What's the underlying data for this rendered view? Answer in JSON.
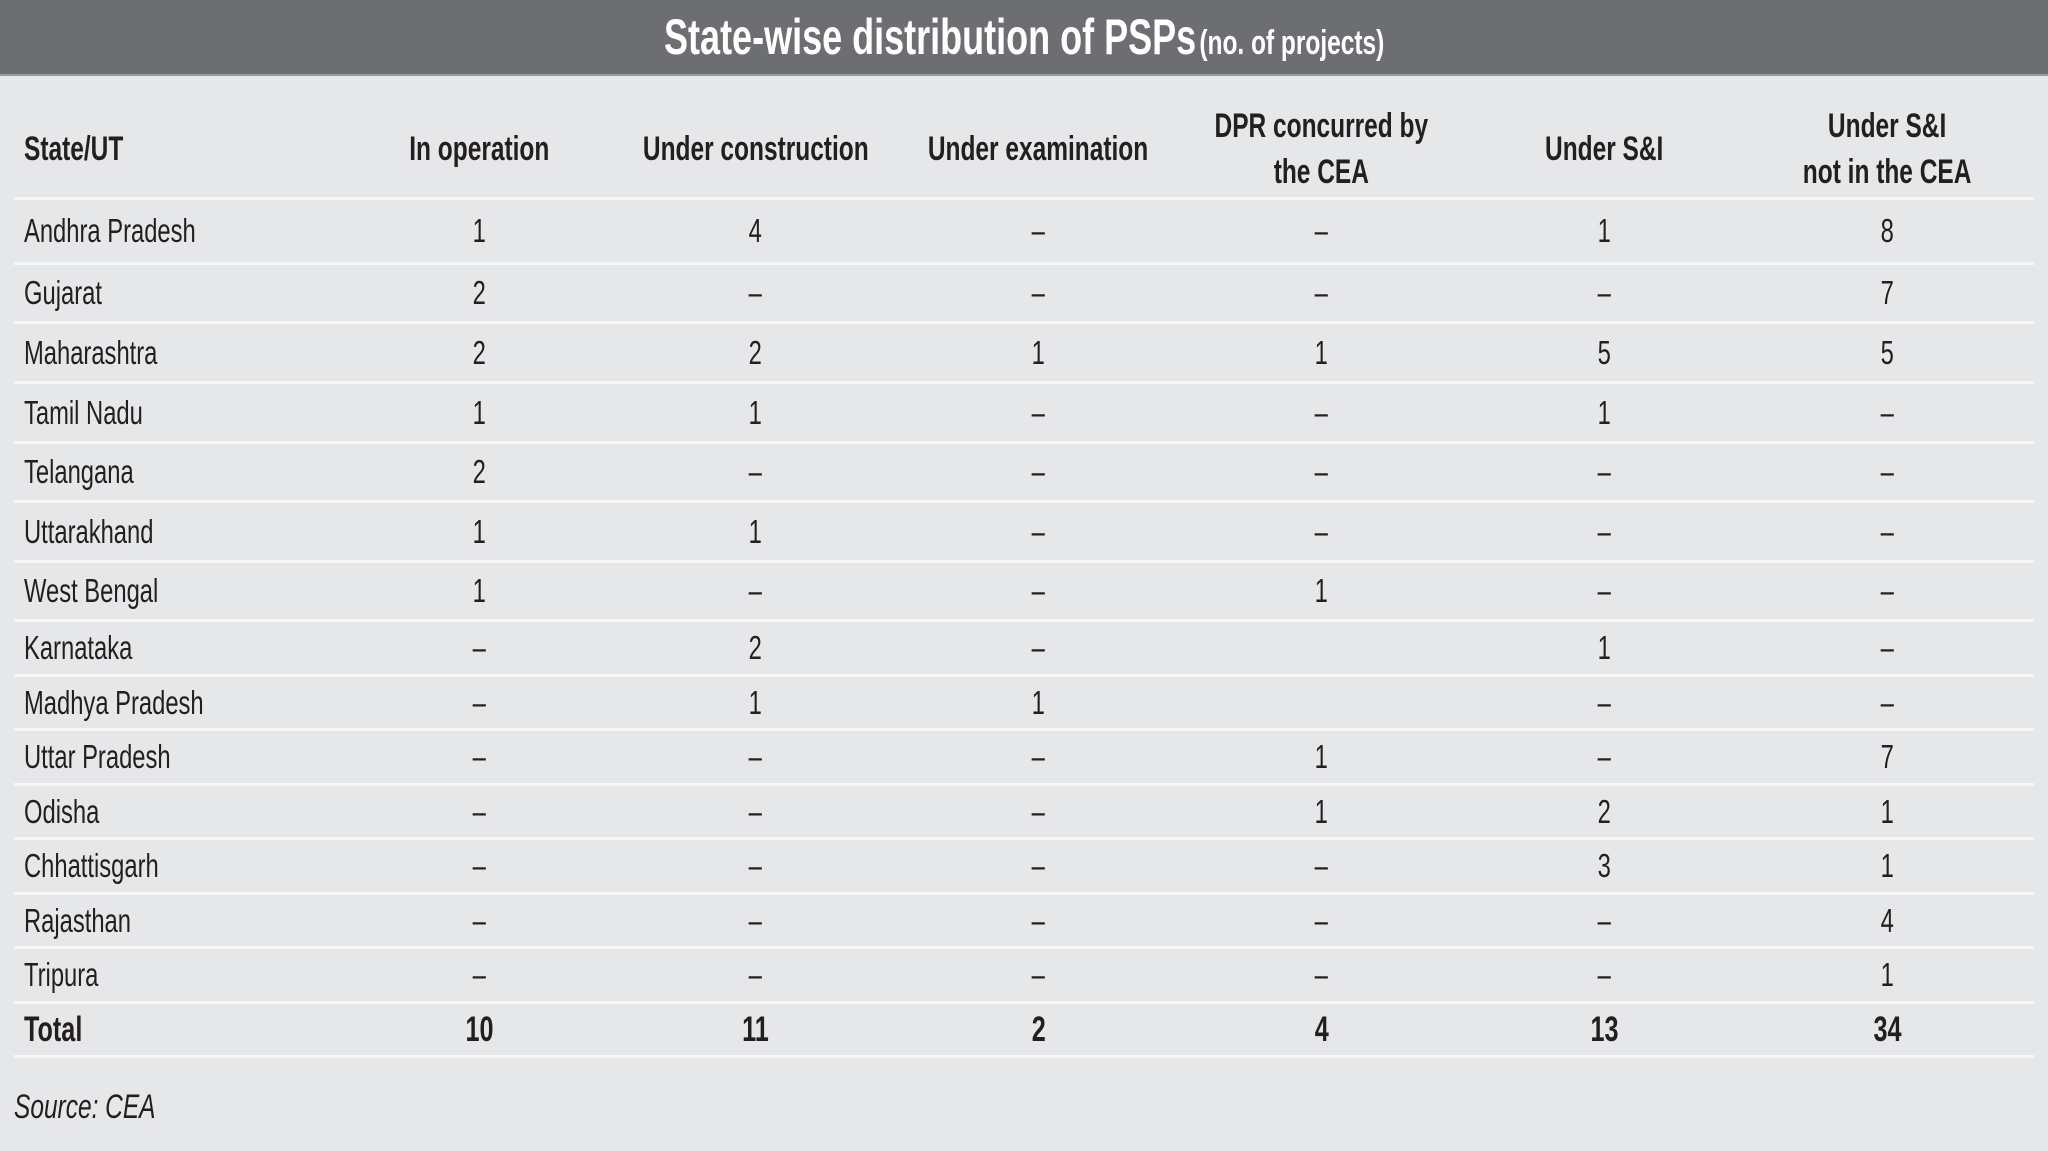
{
  "title": {
    "main": "State-wise distribution of PSPs",
    "sub": "(no. of projects)"
  },
  "colors": {
    "title_bar": "#6d6e71",
    "background": "#e6e7e8",
    "row_divider": "#f7f7f7",
    "text": "#231f20"
  },
  "table": {
    "headers": [
      "State/UT",
      "In operation",
      "Under construction",
      "Under examination",
      "DPR concurred by the CEA",
      "Under S&I",
      "Under S&I not in the CEA"
    ],
    "header_lines": {
      "dpr_line1": "DPR concurred by",
      "dpr_line2": "the CEA",
      "si_not_line1": "Under S&I",
      "si_not_line2": "not in the CEA"
    },
    "rows": [
      {
        "state": "Andhra Pradesh",
        "cells": [
          "1",
          "4",
          "–",
          "–",
          "1",
          "8"
        ]
      },
      {
        "state": "Gujarat",
        "cells": [
          "2",
          "–",
          "–",
          "–",
          "–",
          "7"
        ]
      },
      {
        "state": "Maharashtra",
        "cells": [
          "2",
          "2",
          "1",
          "1",
          "5",
          "5"
        ]
      },
      {
        "state": "Tamil Nadu",
        "cells": [
          "1",
          "1",
          "–",
          "–",
          "1",
          "–"
        ]
      },
      {
        "state": "Telangana",
        "cells": [
          "2",
          "–",
          "–",
          "–",
          "–",
          "–"
        ]
      },
      {
        "state": "Uttarakhand",
        "cells": [
          "1",
          "1",
          "–",
          "–",
          "–",
          "–"
        ]
      },
      {
        "state": "West Bengal",
        "cells": [
          "1",
          "–",
          "–",
          "1",
          "–",
          "–"
        ]
      },
      {
        "state": "Karnataka",
        "cells": [
          "–",
          "2",
          "–",
          "",
          "1",
          "–"
        ]
      },
      {
        "state": "Madhya Pradesh",
        "cells": [
          "–",
          "1",
          "1",
          "",
          "–",
          "–"
        ]
      },
      {
        "state": "Uttar Pradesh",
        "cells": [
          "–",
          "–",
          "–",
          "1",
          "–",
          "7"
        ]
      },
      {
        "state": "Odisha",
        "cells": [
          "–",
          "–",
          "–",
          "1",
          "2",
          "1"
        ]
      },
      {
        "state": "Chhattisgarh",
        "cells": [
          "–",
          "–",
          "–",
          "–",
          "3",
          "1"
        ]
      },
      {
        "state": "Rajasthan",
        "cells": [
          "–",
          "–",
          "–",
          "–",
          "–",
          "4"
        ]
      },
      {
        "state": "Tripura",
        "cells": [
          "–",
          "–",
          "–",
          "–",
          "–",
          "1"
        ]
      }
    ],
    "total": {
      "label": "Total",
      "cells": [
        "10",
        "11",
        "2",
        "4",
        "13",
        "34"
      ]
    }
  },
  "source": "Source: CEA"
}
